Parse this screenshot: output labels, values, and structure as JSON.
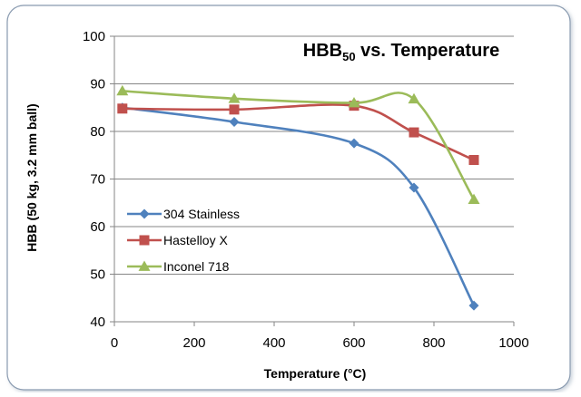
{
  "chart_data": {
    "type": "line",
    "title_main": "HBB",
    "title_sub": "50",
    "title_rest": " vs. Temperature",
    "xlabel": "Temperature (°C)",
    "ylabel": "HBB (50 kg, 3.2 mm ball)",
    "xlim": [
      0,
      1000
    ],
    "ylim": [
      40,
      100
    ],
    "xticks": [
      "0",
      "200",
      "400",
      "600",
      "800",
      "1000"
    ],
    "yticks": [
      "40",
      "50",
      "60",
      "70",
      "80",
      "90",
      "100"
    ],
    "grid": "horizontal",
    "legend_position": "left-middle",
    "smooth": true,
    "series": [
      {
        "name": "304 Stainless",
        "color": "#4F81BD",
        "marker": "diamond",
        "points": [
          [
            20,
            85.0
          ],
          [
            300,
            82.0
          ],
          [
            600,
            77.5
          ],
          [
            750,
            68.2
          ],
          [
            900,
            43.4
          ]
        ]
      },
      {
        "name": "Hastelloy X",
        "color": "#C0504D",
        "marker": "square",
        "points": [
          [
            20,
            84.8
          ],
          [
            300,
            84.6
          ],
          [
            600,
            85.4
          ],
          [
            750,
            79.8
          ],
          [
            900,
            74.0
          ]
        ]
      },
      {
        "name": "Inconel 718",
        "color": "#9BBB59",
        "marker": "triangle",
        "points": [
          [
            20,
            88.5
          ],
          [
            300,
            86.9
          ],
          [
            600,
            86.0
          ],
          [
            750,
            86.8
          ],
          [
            900,
            65.7
          ]
        ]
      }
    ]
  }
}
